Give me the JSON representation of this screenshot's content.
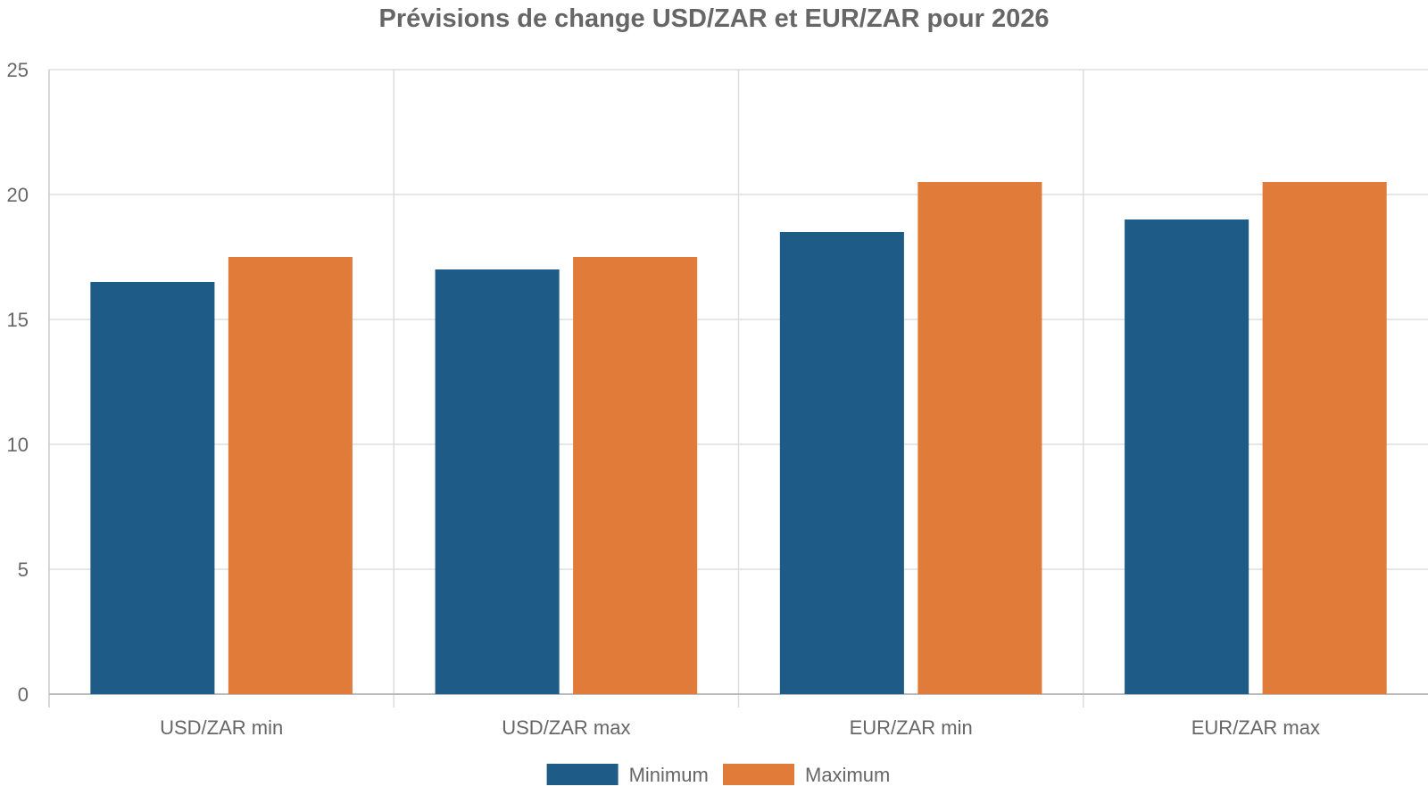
{
  "chart_data": {
    "type": "bar",
    "title": "Prévisions de change USD/ZAR et EUR/ZAR pour 2026",
    "categories": [
      "USD/ZAR min",
      "USD/ZAR max",
      "EUR/ZAR min",
      "EUR/ZAR max"
    ],
    "series": [
      {
        "name": "Minimum",
        "color": "#1f5b87",
        "values": [
          16.5,
          17,
          18.5,
          19
        ]
      },
      {
        "name": "Maximum",
        "color": "#e07b3a",
        "values": [
          17.5,
          17.5,
          20.5,
          20.5
        ]
      }
    ],
    "ylim": [
      0,
      25
    ],
    "yticks": [
      0,
      5,
      10,
      15,
      20,
      25
    ],
    "grid": true,
    "legend_position": "bottom"
  }
}
